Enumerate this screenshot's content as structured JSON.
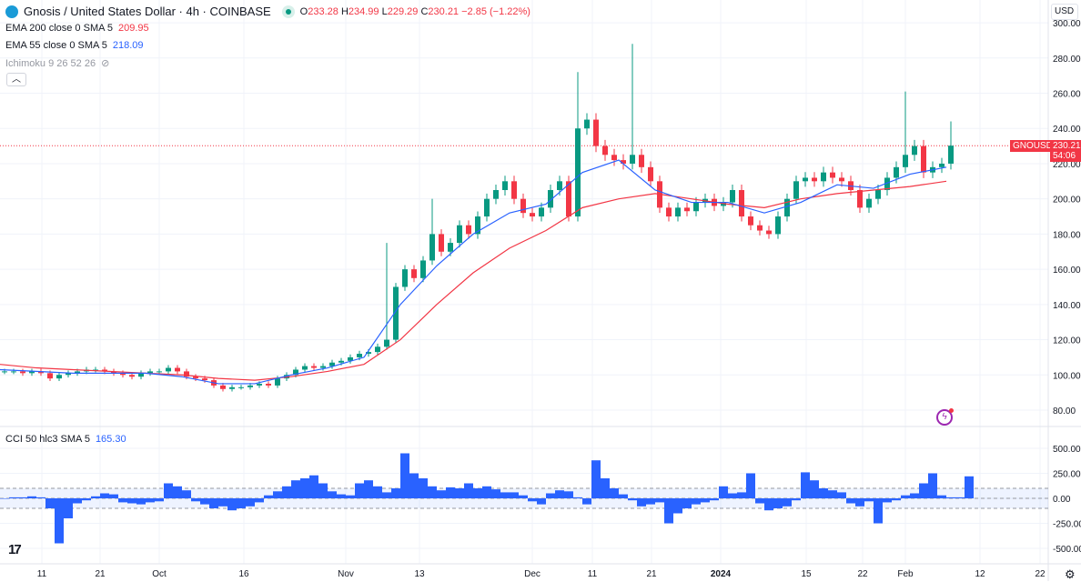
{
  "header": {
    "symbol": "Gnosis / United States Dollar · 4h · COINBASE",
    "open_label": "O",
    "open": "233.28",
    "high_label": "H",
    "high": "234.99",
    "low_label": "L",
    "low": "229.29",
    "close_label": "C",
    "close": "230.21",
    "change": "−2.85 (−1.22%)",
    "market_status": "open"
  },
  "indicators": {
    "ema200": {
      "label": "EMA 200 close 0 SMA 5",
      "value": "209.95",
      "color": "#f23645"
    },
    "ema55": {
      "label": "EMA 55 close 0 SMA 5",
      "value": "218.09",
      "color": "#2962ff"
    },
    "ichimoku": {
      "label": "Ichimoku 9 26 52 26",
      "icon": "eye-off-icon"
    },
    "cci": {
      "label": "CCI 50 hlc3 SMA 5",
      "value": "165.30"
    }
  },
  "collapse_icon": "chevron-up-icon",
  "currency": "USD",
  "price_tag": {
    "symbol": "GNOUSD",
    "price": "230.21",
    "countdown": "54:06"
  },
  "branding": "TV",
  "chart_data": [
    {
      "type": "candlestick",
      "ylim": [
        70,
        305
      ],
      "y_ticks": [
        "300.00",
        "280.00",
        "260.00",
        "240.00",
        "220.00",
        "200.00",
        "180.00",
        "160.00",
        "140.00",
        "120.00",
        "100.00",
        "80.00"
      ],
      "x_ticks": [
        "11",
        "21",
        "Oct",
        "16",
        "Nov",
        "13",
        "Dec",
        "11",
        "21",
        "2024",
        "15",
        "22",
        "Feb",
        "12",
        "22"
      ],
      "closes": [
        102,
        102,
        101,
        102,
        101,
        98,
        100,
        101,
        102,
        103,
        103,
        102,
        101,
        100,
        99,
        101,
        102,
        102,
        104,
        102,
        99,
        98,
        97,
        94,
        92,
        93,
        93,
        94,
        95,
        94,
        98,
        100,
        103,
        105,
        104,
        105,
        107,
        108,
        110,
        112,
        113,
        116,
        120,
        150,
        160,
        155,
        165,
        180,
        170,
        175,
        185,
        180,
        190,
        200,
        205,
        210,
        200,
        192,
        190,
        195,
        205,
        210,
        190,
        240,
        245,
        230,
        225,
        222,
        220,
        225,
        218,
        210,
        195,
        190,
        195,
        193,
        198,
        200,
        196,
        198,
        205,
        190,
        185,
        182,
        180,
        190,
        200,
        210,
        212,
        210,
        215,
        212,
        210,
        205,
        195,
        200,
        205,
        212,
        218,
        225,
        230,
        215,
        218,
        220,
        230.21
      ],
      "spike_highs": {
        "42": 175,
        "47": 200,
        "63": 272,
        "69": 288,
        "99": 261,
        "104": 244
      },
      "series": [
        {
          "name": "EMA 200",
          "color": "#f23645",
          "values": [
            106,
            104,
            103,
            102,
            101,
            100,
            98,
            97,
            99,
            102,
            106,
            120,
            140,
            158,
            172,
            182,
            195,
            200,
            203,
            200,
            197,
            195,
            200,
            203,
            205,
            207,
            210
          ]
        },
        {
          "name": "EMA 55",
          "color": "#2962ff",
          "values": [
            103,
            102,
            101,
            101,
            101,
            99,
            95,
            95,
            100,
            104,
            110,
            140,
            162,
            180,
            192,
            197,
            215,
            222,
            205,
            198,
            198,
            192,
            198,
            208,
            206,
            214,
            218
          ]
        }
      ],
      "up_color": "#089981",
      "down_color": "#f23645"
    },
    {
      "type": "histogram",
      "name": "CCI 50 hlc3 SMA 5",
      "ylim": [
        -600,
        650
      ],
      "y_ticks": [
        "500.00",
        "250.00",
        "0.00",
        "-250.00",
        "-500.00"
      ],
      "bands": [
        100,
        -100
      ],
      "color": "#2962ff",
      "values": [
        0,
        10,
        10,
        20,
        10,
        -100,
        -450,
        -200,
        -50,
        -20,
        20,
        50,
        40,
        -40,
        -50,
        -60,
        -40,
        -30,
        150,
        120,
        80,
        -30,
        -60,
        -100,
        -80,
        -120,
        -100,
        -80,
        -40,
        30,
        70,
        120,
        180,
        200,
        230,
        150,
        70,
        40,
        30,
        150,
        180,
        120,
        60,
        100,
        450,
        250,
        200,
        120,
        80,
        110,
        100,
        150,
        100,
        120,
        90,
        60,
        60,
        30,
        -30,
        -60,
        50,
        80,
        70,
        10,
        -60,
        380,
        200,
        100,
        40,
        -20,
        -80,
        -60,
        -40,
        -250,
        -150,
        -100,
        -60,
        -40,
        -20,
        120,
        50,
        60,
        250,
        -50,
        -120,
        -100,
        -80,
        -20,
        260,
        180,
        100,
        80,
        60,
        -50,
        -80,
        -30,
        -250,
        -40,
        -20,
        30,
        50,
        150,
        250,
        30,
        10,
        10,
        220
      ]
    }
  ]
}
